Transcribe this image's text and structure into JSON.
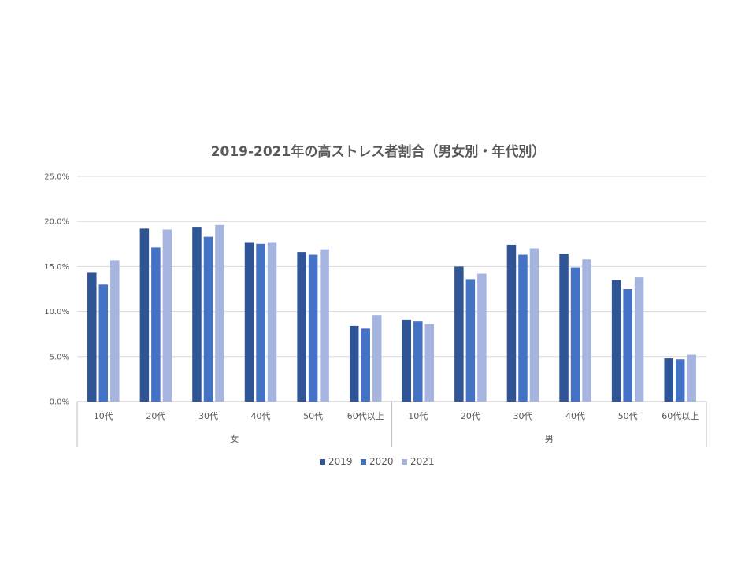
{
  "chart_data": {
    "type": "bar",
    "title": "2019-2021年の高ストレス者割合（男女別・年代別）",
    "groups": [
      {
        "label": "女",
        "categories": [
          "10代",
          "20代",
          "30代",
          "40代",
          "50代",
          "60代以上"
        ]
      },
      {
        "label": "男",
        "categories": [
          "10代",
          "20代",
          "30代",
          "40代",
          "50代",
          "60代以上"
        ]
      }
    ],
    "series": [
      {
        "name": "2019",
        "color": "#2F5597",
        "values": [
          14.3,
          19.2,
          19.4,
          17.7,
          16.6,
          8.4,
          9.1,
          15.0,
          17.4,
          16.4,
          13.5,
          4.8
        ]
      },
      {
        "name": "2020",
        "color": "#4472C4",
        "values": [
          13.0,
          17.1,
          18.3,
          17.5,
          16.3,
          8.1,
          8.9,
          13.6,
          16.3,
          14.9,
          12.5,
          4.7
        ]
      },
      {
        "name": "2021",
        "color": "#A5B5E0",
        "values": [
          15.7,
          19.1,
          19.6,
          17.7,
          16.9,
          9.6,
          8.6,
          14.2,
          17.0,
          15.8,
          13.8,
          5.2
        ]
      }
    ],
    "ylim": [
      0,
      25
    ],
    "yticks": [
      "0.0%",
      "5.0%",
      "10.0%",
      "15.0%",
      "20.0%",
      "25.0%"
    ],
    "gridlines": true,
    "legend_position": "bottom"
  }
}
